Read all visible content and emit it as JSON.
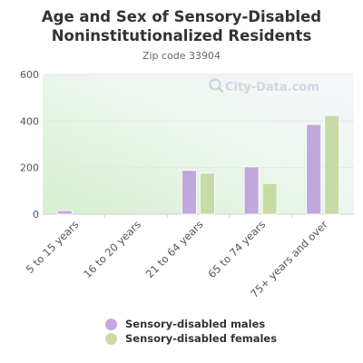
{
  "chart_data": {
    "type": "bar",
    "title": "Age and Sex of Sensory-Disabled Noninstitutionalized Residents",
    "subtitle": "Zip code 33904",
    "categories": [
      "5 to 15 years",
      "16 to 20 years",
      "21 to 64 years",
      "65 to 74 years",
      "75+ years and over"
    ],
    "series": [
      {
        "name": "Sensory-disabled males",
        "values": [
          15,
          0,
          188,
          203,
          385
        ],
        "color": "#c0a8dc"
      },
      {
        "name": "Sensory-disabled females",
        "values": [
          0,
          0,
          176,
          132,
          424
        ],
        "color": "#c8dba6"
      }
    ],
    "yticks": [
      0,
      200,
      400,
      600
    ],
    "ylim": [
      0,
      600
    ],
    "xlabel": "",
    "ylabel": "",
    "grid": true,
    "legend_position": "bottom"
  },
  "watermark": {
    "text": "City-Data.com",
    "icon": "magnifier-icon"
  }
}
